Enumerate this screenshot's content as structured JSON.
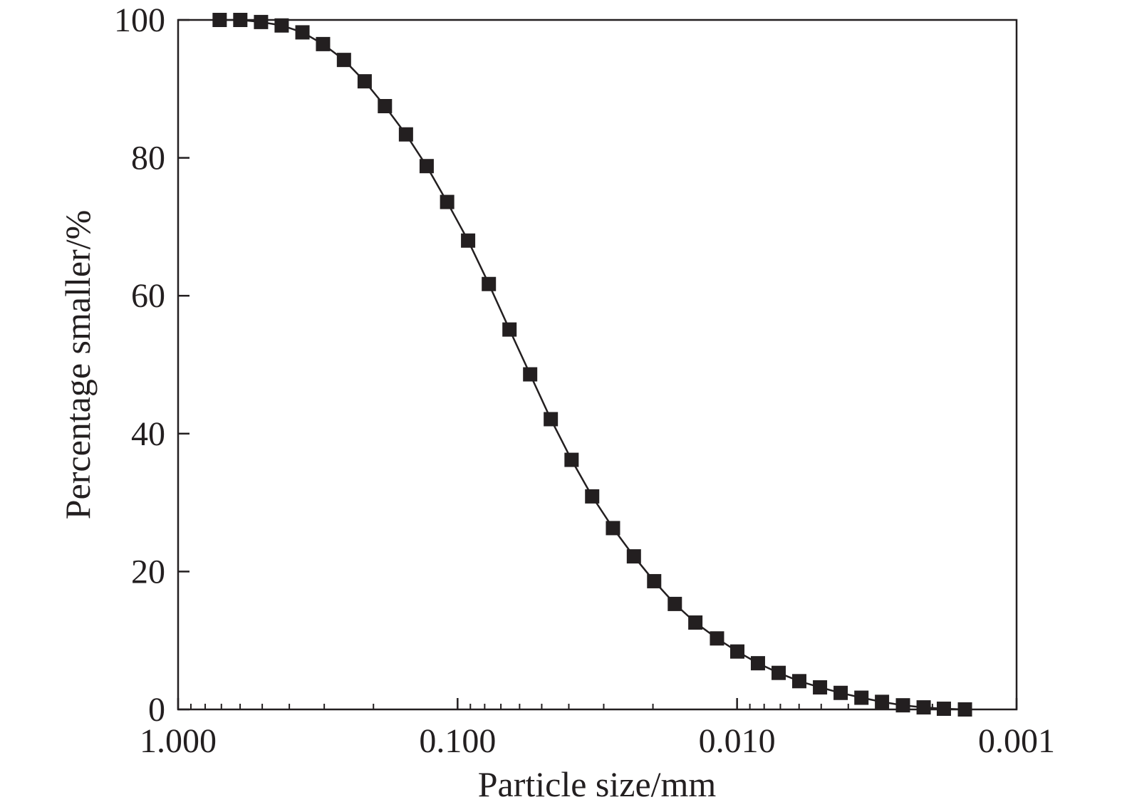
{
  "chart_data": {
    "type": "line",
    "title": "",
    "xlabel": "Particle size/mm",
    "ylabel": "Percentage smaller/%",
    "x_scale": "log",
    "x_reversed": true,
    "xlim": [
      1.0,
      0.001
    ],
    "ylim": [
      0,
      100
    ],
    "x_ticks": [
      1.0,
      0.1,
      0.01,
      0.001
    ],
    "x_tick_labels": [
      "1.000",
      "0.100",
      "0.010",
      "0.001"
    ],
    "y_ticks": [
      0,
      20,
      40,
      60,
      80,
      100
    ],
    "y_tick_labels": [
      "0",
      "20",
      "40",
      "60",
      "80",
      "100"
    ],
    "grid": false,
    "legend": "none",
    "series": [
      {
        "marker": "square",
        "color": "#231f20",
        "x": [
          0.71,
          0.599,
          0.505,
          0.426,
          0.359,
          0.303,
          0.255,
          0.215,
          0.182,
          0.153,
          0.129,
          0.109,
          0.0917,
          0.0773,
          0.0652,
          0.055,
          0.0464,
          0.0391,
          0.033,
          0.0278,
          0.0234,
          0.0198,
          0.0167,
          0.0141,
          0.0118,
          0.00998,
          0.00842,
          0.0071,
          0.00599,
          0.00505,
          0.00426,
          0.00359,
          0.00303,
          0.00255,
          0.00215,
          0.00182,
          0.00153
        ],
        "y": [
          100.0,
          100.0,
          99.7,
          99.2,
          98.2,
          96.5,
          94.2,
          91.1,
          87.5,
          83.4,
          78.8,
          73.6,
          68.0,
          61.7,
          55.1,
          48.6,
          42.1,
          36.2,
          30.9,
          26.3,
          22.2,
          18.6,
          15.3,
          12.6,
          10.3,
          8.4,
          6.7,
          5.3,
          4.1,
          3.2,
          2.4,
          1.7,
          1.1,
          0.6,
          0.3,
          0.1,
          0.0
        ]
      }
    ]
  }
}
